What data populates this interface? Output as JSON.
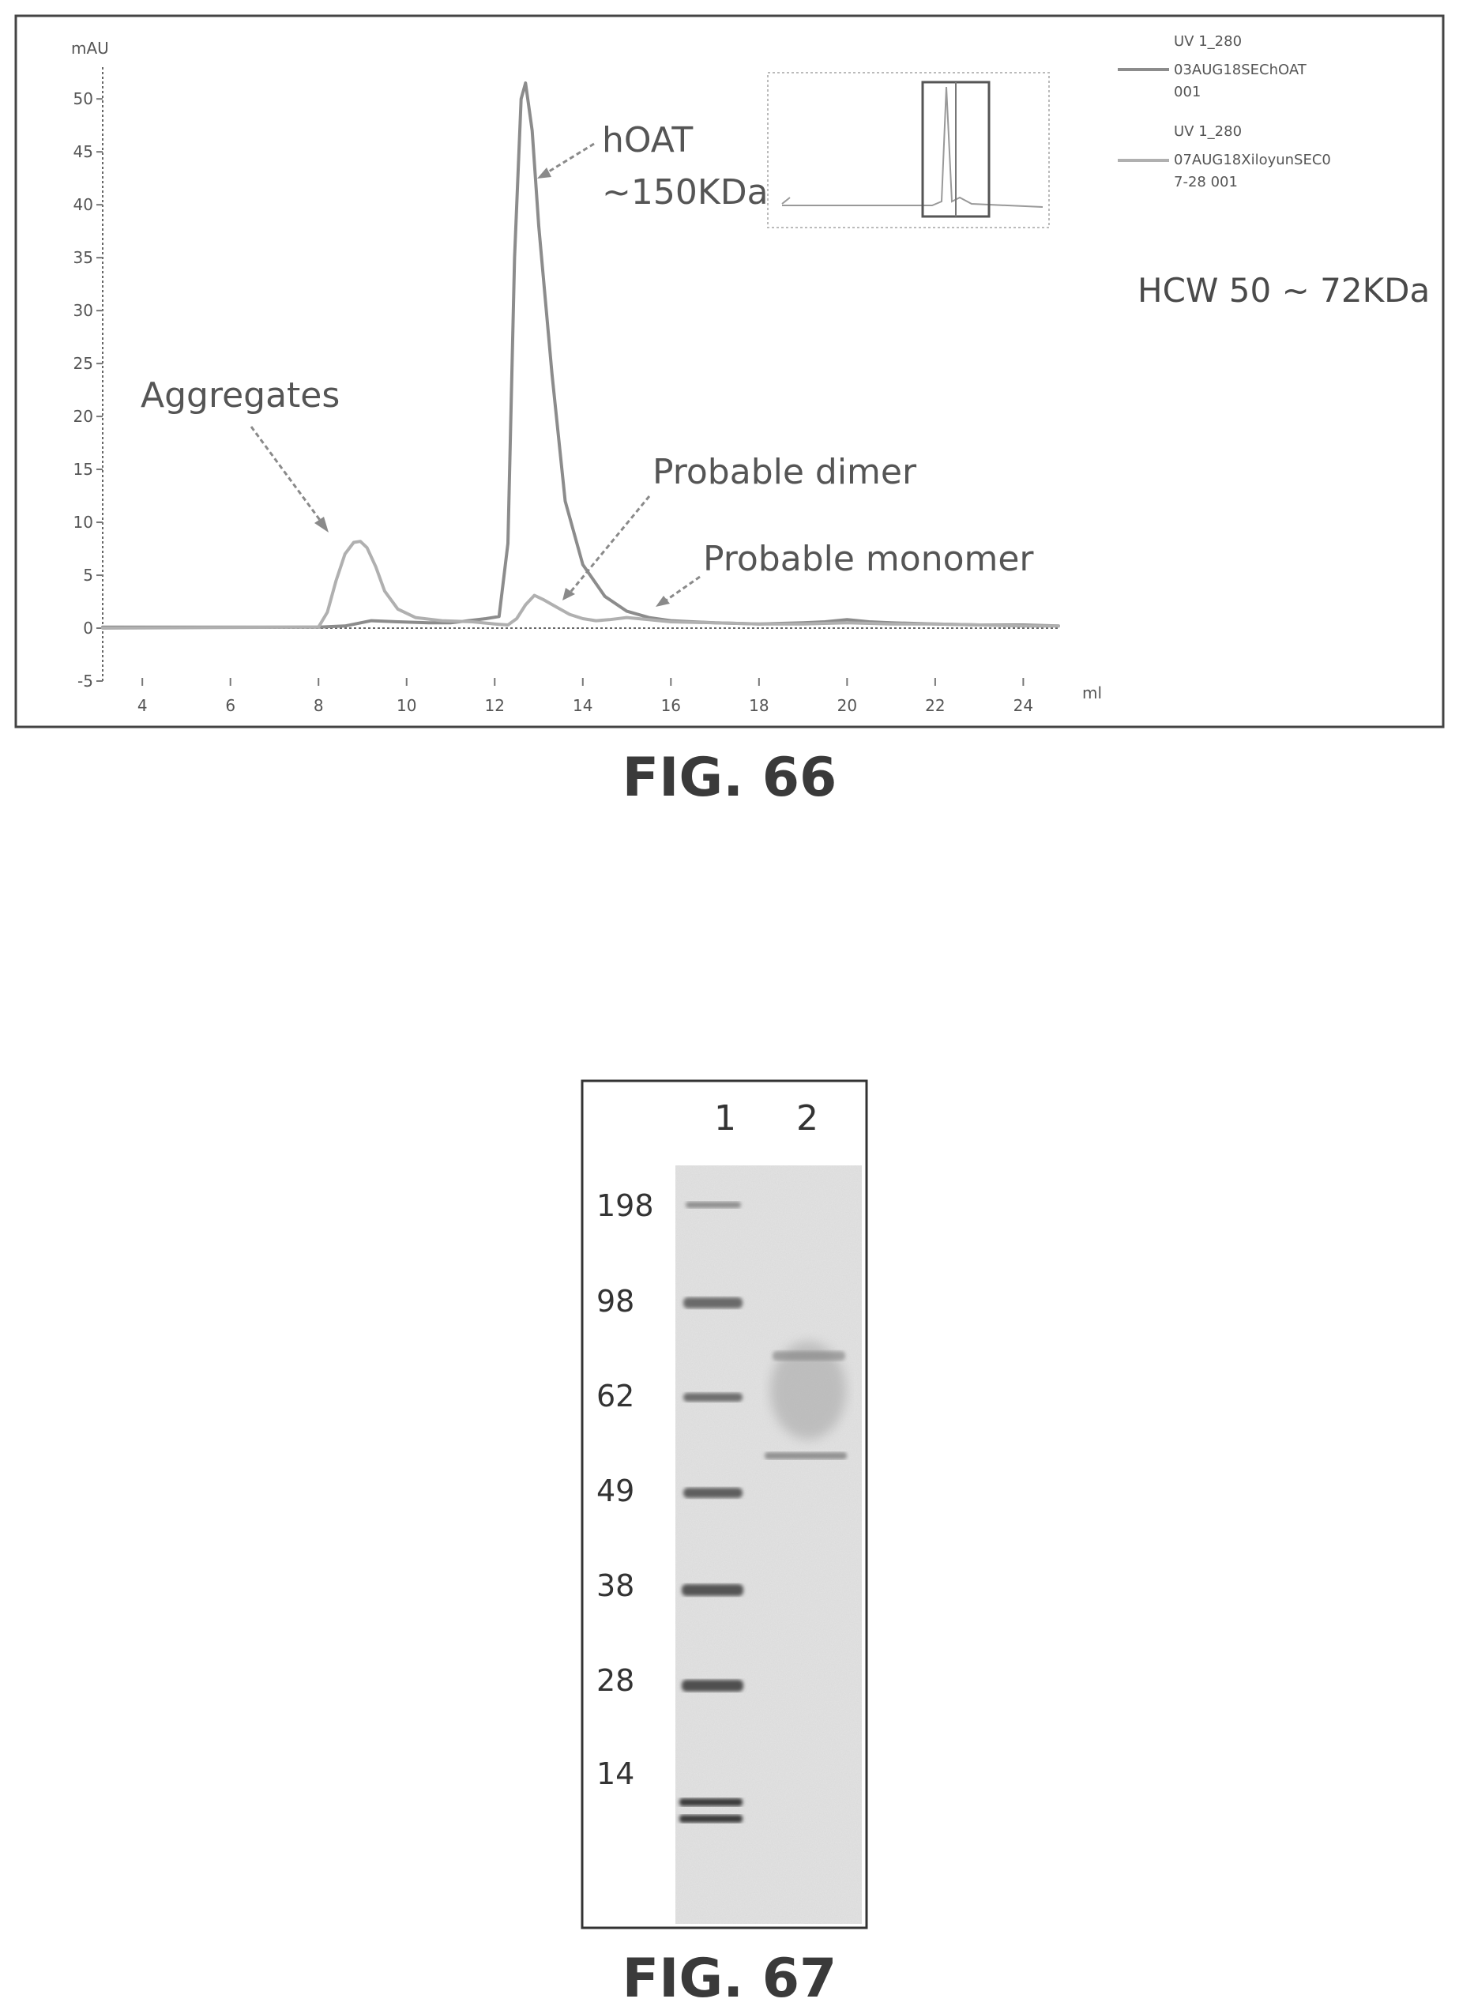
{
  "chart_data": [
    {
      "type": "line",
      "figure_label": "FIG. 66",
      "xlabel": "ml",
      "ylabel": "mAU",
      "xlim": [
        3.1,
        24.8
      ],
      "ylim": [
        -5,
        53
      ],
      "x_ticks": [
        4,
        6,
        8,
        10,
        12,
        14,
        16,
        18,
        20,
        22,
        24
      ],
      "y_ticks": [
        -5,
        0,
        5,
        10,
        15,
        20,
        25,
        30,
        35,
        40,
        45,
        50
      ],
      "grid": false,
      "legend_position": "top-right",
      "series": [
        {
          "name": "UV 1_280 03AUG18SEChOAT 001",
          "legend_lines": [
            "UV 1_280",
            "03AUG18SEChOAT",
            "001"
          ],
          "color": "#8c8c8c",
          "points": [
            [
              3.1,
              0.1
            ],
            [
              8.0,
              0.1
            ],
            [
              8.6,
              0.2
            ],
            [
              9.2,
              0.7
            ],
            [
              9.8,
              0.6
            ],
            [
              10.5,
              0.5
            ],
            [
              11.0,
              0.5
            ],
            [
              11.4,
              0.7
            ],
            [
              11.8,
              0.9
            ],
            [
              12.1,
              1.1
            ],
            [
              12.3,
              8.0
            ],
            [
              12.45,
              35.0
            ],
            [
              12.6,
              50.0
            ],
            [
              12.7,
              51.5
            ],
            [
              12.85,
              47.0
            ],
            [
              13.0,
              38.0
            ],
            [
              13.3,
              24.0
            ],
            [
              13.6,
              12.0
            ],
            [
              14.0,
              6.0
            ],
            [
              14.5,
              3.0
            ],
            [
              15.0,
              1.6
            ],
            [
              15.5,
              1.0
            ],
            [
              16.0,
              0.7
            ],
            [
              17.0,
              0.5
            ],
            [
              18.0,
              0.4
            ],
            [
              19.0,
              0.5
            ],
            [
              19.5,
              0.6
            ],
            [
              20.0,
              0.8
            ],
            [
              20.5,
              0.6
            ],
            [
              21.0,
              0.5
            ],
            [
              22.0,
              0.4
            ],
            [
              23.0,
              0.3
            ],
            [
              24.0,
              0.3
            ],
            [
              24.8,
              0.2
            ]
          ]
        },
        {
          "name": "UV 1_280 07AUG18XiloyunSEC07-28 001",
          "legend_lines": [
            "UV 1_280",
            "07AUG18XiloyunSEC0",
            "7-28 001"
          ],
          "color": "#b0b0b0",
          "points": [
            [
              3.1,
              0.0
            ],
            [
              8.0,
              0.1
            ],
            [
              8.2,
              1.5
            ],
            [
              8.4,
              4.5
            ],
            [
              8.6,
              7.0
            ],
            [
              8.8,
              8.1
            ],
            [
              8.95,
              8.2
            ],
            [
              9.1,
              7.6
            ],
            [
              9.3,
              5.8
            ],
            [
              9.5,
              3.5
            ],
            [
              9.8,
              1.8
            ],
            [
              10.2,
              1.0
            ],
            [
              10.8,
              0.7
            ],
            [
              11.5,
              0.6
            ],
            [
              12.0,
              0.4
            ],
            [
              12.3,
              0.3
            ],
            [
              12.5,
              0.9
            ],
            [
              12.7,
              2.2
            ],
            [
              12.9,
              3.1
            ],
            [
              13.1,
              2.7
            ],
            [
              13.4,
              2.0
            ],
            [
              13.7,
              1.3
            ],
            [
              14.0,
              0.9
            ],
            [
              14.3,
              0.7
            ],
            [
              14.6,
              0.8
            ],
            [
              15.0,
              1.0
            ],
            [
              15.5,
              0.8
            ],
            [
              16.0,
              0.6
            ],
            [
              17.0,
              0.5
            ],
            [
              18.0,
              0.4
            ],
            [
              19.0,
              0.4
            ],
            [
              20.0,
              0.5
            ],
            [
              21.0,
              0.4
            ],
            [
              22.0,
              0.4
            ],
            [
              23.0,
              0.3
            ],
            [
              24.0,
              0.2
            ],
            [
              24.8,
              0.2
            ]
          ]
        }
      ],
      "annotations": [
        {
          "text": "Aggregates",
          "x": 8.9,
          "y": 8.5
        },
        {
          "text": "hOAT",
          "x": 12.8,
          "y": 42.0
        },
        {
          "text": "~150KDa",
          "x": 12.8,
          "y": 42.0
        },
        {
          "text": "Probable dimer",
          "x": 13.0,
          "y": 2.5
        },
        {
          "text": "Probable monomer",
          "x": 14.8,
          "y": 2.0
        },
        {
          "text": "HCW 50 ~ 72KDa"
        }
      ]
    },
    {
      "type": "gel",
      "figure_label": "FIG. 67",
      "lanes": [
        "1",
        "2"
      ],
      "marker_labels": [
        "198",
        "98",
        "62",
        "49",
        "38",
        "28",
        "14"
      ],
      "ladder_lane": "1",
      "sample_lane": "2"
    }
  ]
}
